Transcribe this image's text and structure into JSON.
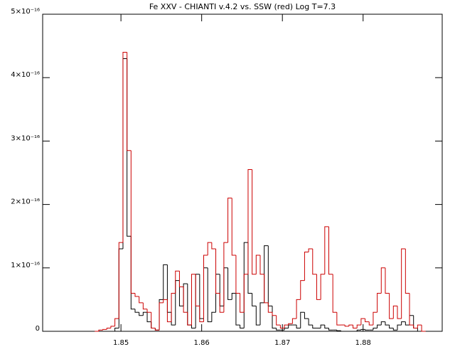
{
  "chart_data": {
    "type": "step",
    "title": "Fe XXV - CHIANTI v.4.2 vs. SSW (red) Log T=7.3",
    "x": [
      1.847,
      1.8475,
      1.848,
      1.8485,
      1.849,
      1.8495,
      1.85,
      1.8505,
      1.851,
      1.8515,
      1.852,
      1.8525,
      1.853,
      1.8535,
      1.854,
      1.8545,
      1.855,
      1.8555,
      1.856,
      1.8565,
      1.857,
      1.8575,
      1.858,
      1.8585,
      1.859,
      1.8595,
      1.86,
      1.8605,
      1.861,
      1.8615,
      1.862,
      1.8625,
      1.863,
      1.8635,
      1.864,
      1.8645,
      1.865,
      1.8655,
      1.866,
      1.8665,
      1.867,
      1.8675,
      1.868,
      1.8685,
      1.869,
      1.8695,
      1.87,
      1.8705,
      1.871,
      1.8715,
      1.872,
      1.8725,
      1.873,
      1.8735,
      1.874,
      1.8745,
      1.875,
      1.8755,
      1.876,
      1.8765,
      1.877,
      1.8775,
      1.878,
      1.8785,
      1.879,
      1.8795,
      1.88,
      1.8805,
      1.881,
      1.8815,
      1.882,
      1.8825,
      1.883,
      1.8835,
      1.884,
      1.8845,
      1.885,
      1.8855,
      1.886,
      1.8865,
      1.887,
      1.8875
    ],
    "series": [
      {
        "name": "CHIANTI v.4.2",
        "color": "#000000",
        "values": [
          0,
          0,
          0,
          0,
          0,
          5e-18,
          1.3e-16,
          4.3e-16,
          1.5e-16,
          3.5e-17,
          3e-17,
          2.5e-17,
          3e-17,
          1.5e-17,
          5e-18,
          2e-18,
          5e-17,
          1.05e-16,
          3e-17,
          1e-17,
          8e-17,
          4e-17,
          7.5e-17,
          1e-17,
          5e-18,
          9e-17,
          2e-17,
          1e-16,
          1.5e-17,
          3e-17,
          9e-17,
          4e-17,
          1e-16,
          5e-17,
          6e-17,
          1e-17,
          5e-18,
          1.4e-16,
          6e-17,
          4e-17,
          1e-17,
          4.5e-17,
          1.35e-16,
          4e-17,
          5e-18,
          2e-18,
          2e-18,
          5e-18,
          1e-17,
          1e-17,
          5e-18,
          3e-17,
          2e-17,
          1e-17,
          5e-18,
          5e-18,
          1e-17,
          5e-18,
          2e-18,
          2e-18,
          1e-18,
          0,
          0,
          0,
          0,
          2e-18,
          3e-18,
          2e-18,
          2e-18,
          5e-18,
          1e-17,
          1.5e-17,
          1e-17,
          5e-18,
          2e-18,
          1e-17,
          1.5e-17,
          1e-17,
          2.5e-17,
          5e-18,
          0,
          0
        ]
      },
      {
        "name": "SSW",
        "color": "#cc0000",
        "values": [
          0,
          2e-18,
          3e-18,
          5e-18,
          8e-18,
          2e-17,
          1.4e-16,
          4.4e-16,
          2.85e-16,
          6e-17,
          5.5e-17,
          4.5e-17,
          3.5e-17,
          3e-17,
          5e-18,
          2e-18,
          4.5e-17,
          5e-17,
          1.5e-17,
          6e-17,
          9.5e-17,
          7e-17,
          3e-17,
          1e-17,
          9e-17,
          4e-17,
          1.5e-17,
          1.2e-16,
          1.4e-16,
          1.3e-16,
          6e-17,
          3e-17,
          1.4e-16,
          2.1e-16,
          1.2e-16,
          6e-17,
          3e-17,
          9e-17,
          2.55e-16,
          9e-17,
          1.2e-16,
          9e-17,
          4.5e-17,
          3e-17,
          2.5e-17,
          1e-17,
          5e-18,
          1e-17,
          1.2e-17,
          2e-17,
          5e-17,
          8e-17,
          1.25e-16,
          1.3e-16,
          9e-17,
          5e-17,
          9e-17,
          1.65e-16,
          9e-17,
          3e-17,
          1e-17,
          1e-17,
          8e-18,
          1e-17,
          5e-18,
          1e-17,
          2e-17,
          1.5e-17,
          1e-17,
          3e-17,
          6e-17,
          1e-16,
          6e-17,
          2e-17,
          4e-17,
          2e-17,
          1.3e-16,
          6e-17,
          1e-17,
          5e-18,
          1e-17,
          0
        ]
      }
    ],
    "xlim": [
      1.8403,
      1.8898
    ],
    "ylim": [
      0,
      5e-16
    ],
    "xticks": [
      1.85,
      1.86,
      1.87,
      1.88
    ],
    "yticks": [
      0,
      {
        "value": 1e-16,
        "label": "1×10⁻¹⁶"
      },
      {
        "value": 2e-16,
        "label": "2×10⁻¹⁶"
      },
      {
        "value": 3e-16,
        "label": "3×10⁻¹⁶"
      },
      {
        "value": 4e-16,
        "label": "4×10⁻¹⁶"
      },
      {
        "value": 5e-16,
        "label": "5×10⁻¹⁶"
      }
    ]
  }
}
